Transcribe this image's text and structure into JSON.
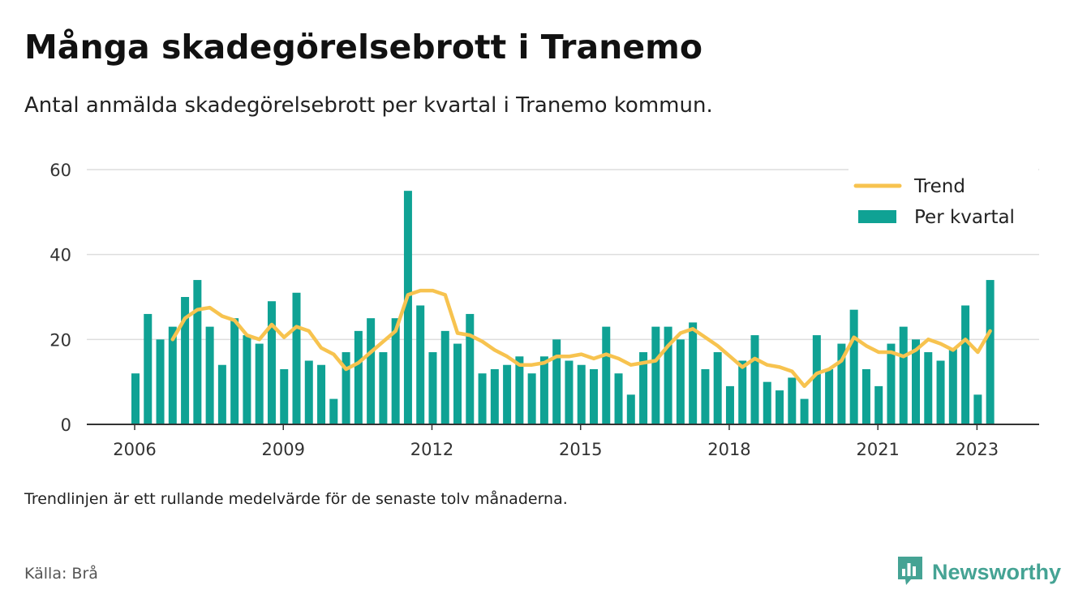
{
  "title": "Många skadegörelsebrott i Tranemo",
  "subtitle": "Antal anmälda skadegörelsebrott per kvartal i Tranemo kommun.",
  "note": "Trendlinjen är ett rullande medelvärde för de senaste tolv månaderna.",
  "source": "Källa: Brå",
  "brand": "Newsworthy",
  "colors": {
    "bars": "#0fa294",
    "trend": "#f7c34f",
    "brand": "#45a394"
  },
  "chart_data": {
    "type": "bar",
    "ylim": [
      0,
      60
    ],
    "yticks": [
      0,
      20,
      40,
      60
    ],
    "xticks": [
      "2006",
      "2009",
      "2012",
      "2015",
      "2018",
      "2021",
      "2023"
    ],
    "xtick_years": [
      2006,
      2009,
      2012,
      2015,
      2018,
      2021,
      2023
    ],
    "grid": true,
    "legend_position": "top-right",
    "start_year": 2006,
    "series": [
      {
        "name": "Trend",
        "type": "line",
        "values": [
          null,
          null,
          null,
          20,
          25,
          27,
          27.5,
          25.5,
          24.5,
          21,
          20,
          23.5,
          20.5,
          23,
          22,
          18,
          16.5,
          13,
          14.5,
          17,
          19.5,
          22,
          30.5,
          31.5,
          31.5,
          30.5,
          21.5,
          21,
          19.5,
          17.5,
          16,
          14,
          14,
          14.5,
          16,
          16,
          16.5,
          15.5,
          16.5,
          15.5,
          14,
          14.5,
          15,
          18.5,
          21.5,
          22.5,
          20.5,
          18.5,
          16,
          13.5,
          15.5,
          14,
          13.5,
          12.5,
          9,
          12,
          13,
          15,
          20.5,
          18.5,
          17,
          17,
          16,
          17.5,
          20,
          19,
          17.5,
          20,
          17,
          22
        ]
      },
      {
        "name": "Per kvartal",
        "type": "bar",
        "values": [
          12,
          26,
          20,
          23,
          30,
          34,
          23,
          14,
          25,
          21,
          19,
          29,
          13,
          31,
          15,
          14,
          6,
          17,
          22,
          25,
          17,
          25,
          55,
          28,
          17,
          22,
          19,
          26,
          12,
          13,
          14,
          16,
          12,
          16,
          20,
          15,
          14,
          13,
          23,
          12,
          7,
          17,
          23,
          23,
          20,
          24,
          13,
          17,
          9,
          15,
          21,
          10,
          8,
          11,
          6,
          21,
          13,
          19,
          27,
          13,
          9,
          19,
          23,
          20,
          17,
          15,
          18,
          28,
          7,
          34
        ]
      }
    ]
  }
}
